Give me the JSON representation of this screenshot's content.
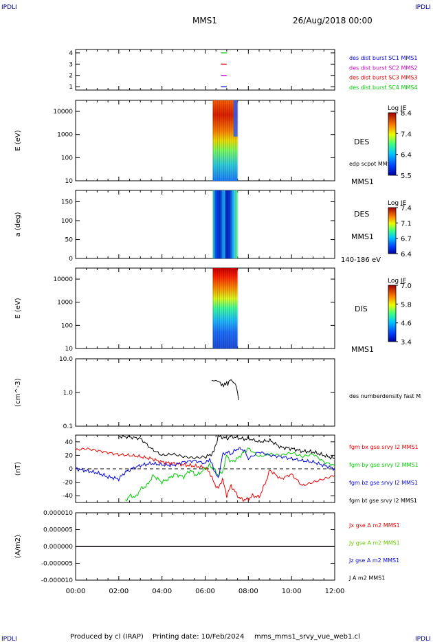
{
  "header": {
    "corner_label": "IPDLI",
    "mission": "MMS1",
    "datetime": "26/Aug/2018 00:00"
  },
  "footer": {
    "produced_by": "Produced by cl (IRAP)",
    "printing_date": "Printing date: 10/Feb/2024",
    "filename": "mms_mms1_srvy_vue_web1.cl"
  },
  "time_axis": {
    "ticks": [
      "00:00",
      "02:00",
      "04:00",
      "06:00",
      "08:00",
      "10:00",
      "12:00"
    ],
    "range_hours": [
      0,
      12
    ]
  },
  "chart_data": [
    {
      "type": "scatter",
      "panel": "burst-availability",
      "yticks": [
        "1",
        "2",
        "3",
        "4"
      ],
      "ylim": [
        0.7,
        4.3
      ],
      "series": [
        {
          "name": "des dist burst SC1 MMS1",
          "color": "#0000cc",
          "y": 1,
          "x_hours": [
            6.73,
            7.0
          ]
        },
        {
          "name": "des dist burst SC2 MMS2",
          "color": "#cc00cc",
          "y": 2,
          "x_hours": [
            6.73,
            7.0
          ]
        },
        {
          "name": "des dist burst SC3 MMS3",
          "color": "#dd0000",
          "y": 3,
          "x_hours": [
            6.73,
            7.0
          ]
        },
        {
          "name": "des dist burst SC4 MMS4",
          "color": "#00cc00",
          "y": 4,
          "x_hours": [
            6.73,
            7.0
          ]
        }
      ]
    },
    {
      "type": "heatmap",
      "panel": "des-energy",
      "ylabel": "E (eV)",
      "yscale": "log",
      "yticks": [
        "10",
        "100",
        "1000",
        "10000"
      ],
      "ylim": [
        10,
        30000
      ],
      "label": "DES",
      "overlay_label": "edp scpot MMS1",
      "sc_label": "MMS1",
      "x_range_hours": [
        6.35,
        7.5
      ],
      "colorbar": {
        "title": "Log JE",
        "ticks": [
          "8.4",
          "7.4",
          "6.4",
          "5.5"
        ],
        "range": [
          5.5,
          8.4
        ]
      }
    },
    {
      "type": "heatmap",
      "panel": "des-pitch",
      "ylabel": "a (deg)",
      "yticks": [
        "0",
        "50",
        "100",
        "150"
      ],
      "ylim": [
        0,
        180
      ],
      "label": "DES",
      "sc_label": "MMS1",
      "energy_label": "140-186 eV",
      "x_range_hours": [
        6.35,
        7.5
      ],
      "colorbar": {
        "title": "Log JE",
        "ticks": [
          "7.4",
          "7.1",
          "6.7",
          "6.4"
        ],
        "range": [
          6.4,
          7.4
        ]
      }
    },
    {
      "type": "heatmap",
      "panel": "dis-energy",
      "ylabel": "E (eV)",
      "yscale": "log",
      "yticks": [
        "10",
        "100",
        "1000",
        "10000"
      ],
      "ylim": [
        10,
        30000
      ],
      "label": "DIS",
      "sc_label": "MMS1",
      "x_range_hours": [
        6.35,
        7.5
      ],
      "colorbar": {
        "title": "Log JE",
        "ticks": [
          "7.0",
          "5.8",
          "4.6",
          "3.4"
        ],
        "range": [
          3.4,
          7.0
        ]
      }
    },
    {
      "type": "line",
      "panel": "density",
      "ylabel": "(cm^-3)",
      "yscale": "log",
      "yticks": [
        "0.1",
        "1.0",
        "10.0"
      ],
      "ylim": [
        0.1,
        10
      ],
      "series": [
        {
          "name": "des numberdensity fast M",
          "color": "#000000",
          "x": [
            6.3,
            6.4,
            6.5,
            6.6,
            6.7,
            6.75,
            6.8,
            6.85,
            6.9,
            6.95,
            7.0,
            7.05,
            7.1,
            7.2,
            7.3,
            7.4,
            7.45,
            7.5,
            7.55
          ],
          "y": [
            2.3,
            2.2,
            2.3,
            2.1,
            2.0,
            1.6,
            1.8,
            1.5,
            1.9,
            1.7,
            2.1,
            1.6,
            2.2,
            2.4,
            2.0,
            1.8,
            1.4,
            1.0,
            0.6
          ]
        }
      ]
    },
    {
      "type": "line",
      "panel": "fgm",
      "ylabel": "(nT)",
      "yticks": [
        "40",
        "20",
        "0",
        "-20",
        "-40"
      ],
      "ylim": [
        -50,
        50
      ],
      "zero_line": true,
      "series": [
        {
          "name": "fgm bx gse srvy l2 MMS1",
          "color": "#ee0000",
          "x": [
            0,
            0.5,
            1,
            1.5,
            2,
            2.5,
            3,
            3.5,
            4,
            4.5,
            5,
            5.5,
            6,
            6.2,
            6.4,
            6.6,
            6.8,
            7,
            7.2,
            7.4,
            7.6,
            7.8,
            8,
            8.2,
            8.5,
            8.8,
            9,
            9.5,
            10,
            10.5,
            11,
            11.5,
            12
          ],
          "y": [
            28,
            30,
            27,
            24,
            21,
            20,
            18,
            15,
            10,
            8,
            6,
            4,
            2,
            -5,
            -20,
            -30,
            -15,
            -40,
            -25,
            -35,
            -44,
            -46,
            -45,
            -40,
            -42,
            -20,
            -2,
            -15,
            -8,
            -25,
            -20,
            -15,
            -10
          ]
        },
        {
          "name": "fgm by gse srvy l2 MMS1",
          "color": "#00cc00",
          "x": [
            2.3,
            2.5,
            2.8,
            3,
            3.3,
            3.6,
            4,
            4.3,
            4.6,
            5,
            5.3,
            5.6,
            6,
            6.2,
            6.4,
            6.6,
            6.8,
            7,
            7.2,
            7.5,
            7.8,
            8,
            8.5,
            9,
            9.5,
            10,
            10.5,
            11,
            11.5,
            12
          ],
          "y": [
            -48,
            -40,
            -42,
            -30,
            -25,
            -10,
            -20,
            -15,
            -8,
            -12,
            -2,
            -10,
            0,
            5,
            0,
            -10,
            -5,
            20,
            10,
            15,
            25,
            30,
            18,
            22,
            20,
            24,
            18,
            22,
            10,
            5
          ]
        },
        {
          "name": "fgm bz gse srvy l2 MMS1",
          "color": "#0000dd",
          "x": [
            0,
            0.5,
            1,
            1.5,
            2,
            2.3,
            2.6,
            3,
            3.5,
            4,
            4.5,
            5,
            5.5,
            6,
            6.2,
            6.4,
            6.6,
            6.8,
            7,
            7.2,
            7.5,
            7.8,
            8,
            8.5,
            9,
            9.5,
            10,
            10.5,
            11,
            11.5,
            12
          ],
          "y": [
            0,
            -3,
            -6,
            -12,
            -15,
            -5,
            0,
            5,
            8,
            6,
            5,
            10,
            12,
            8,
            15,
            0,
            -15,
            20,
            25,
            22,
            30,
            28,
            15,
            25,
            20,
            18,
            15,
            12,
            10,
            5,
            0
          ]
        },
        {
          "name": "fgm bt gse srvy l2 MMS1",
          "color": "#000000",
          "x": [
            2,
            2.5,
            3,
            3.5,
            4,
            4.5,
            5,
            5.5,
            6,
            6.2,
            6.4,
            6.6,
            6.8,
            7,
            7.2,
            7.5,
            7.8,
            8,
            8.5,
            9,
            9.5,
            10,
            10.5,
            11,
            11.5,
            12
          ],
          "y": [
            48,
            47,
            45,
            30,
            20,
            22,
            18,
            16,
            18,
            20,
            25,
            48,
            47,
            45,
            48,
            46,
            44,
            45,
            40,
            42,
            32,
            30,
            26,
            25,
            20,
            15
          ]
        }
      ]
    },
    {
      "type": "line",
      "panel": "current",
      "ylabel": "(A/m2)",
      "yticks": [
        "0.000010",
        "0.000005",
        "0.000000",
        "-0.000005",
        "-0.000010"
      ],
      "ylim": [
        -1e-05,
        1e-05
      ],
      "series": [
        {
          "name": "Jx gse A m2 MMS1",
          "color": "#ee0000",
          "x": [
            0,
            12
          ],
          "y": [
            0,
            0
          ]
        },
        {
          "name": "Jy gse A m2 MMS1",
          "color": "#66cc00",
          "x": [
            0,
            12
          ],
          "y": [
            0,
            0
          ]
        },
        {
          "name": "Jz gse A m2 MMS1",
          "color": "#0000dd",
          "x": [
            0,
            12
          ],
          "y": [
            0,
            0
          ]
        },
        {
          "name": "J A m2 MMS1",
          "color": "#000000",
          "x": [
            0,
            12
          ],
          "y": [
            0,
            0
          ]
        }
      ]
    }
  ]
}
